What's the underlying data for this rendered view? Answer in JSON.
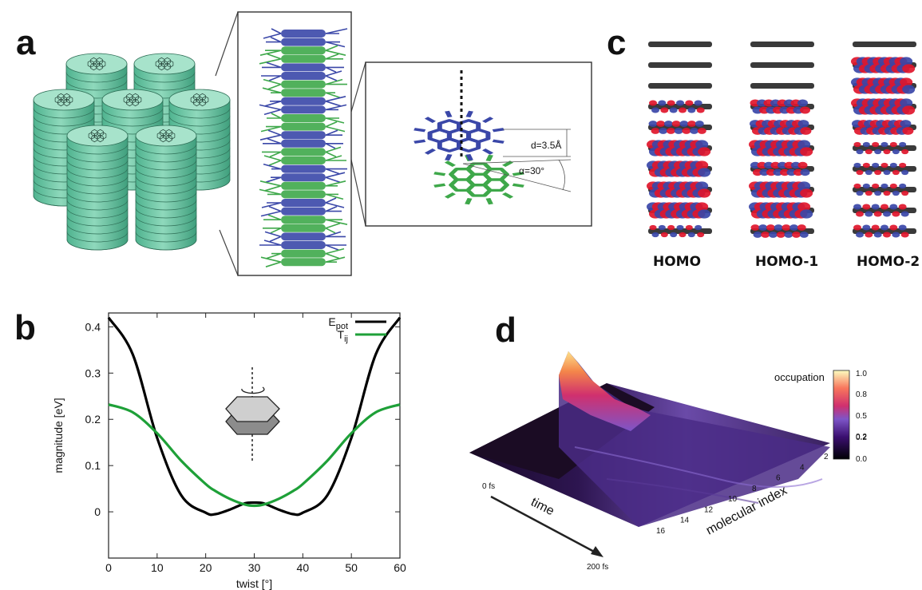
{
  "panels": {
    "a": {
      "letter": "a",
      "distance_label": "d=3.5Å",
      "angle_label": "α=30°"
    },
    "b": {
      "letter": "b"
    },
    "c": {
      "letter": "c",
      "orbitals": [
        "HOMO",
        "HOMO-1",
        "HOMO-2"
      ]
    },
    "d": {
      "letter": "d",
      "time_start": "0 fs",
      "time_end": "200 fs",
      "time_label": "time",
      "index_label": "molecular index",
      "index_ticks": [
        "2",
        "4",
        "6",
        "8",
        "10",
        "12",
        "14",
        "16"
      ],
      "colorbar_title": "occupation",
      "colorbar_ticks": [
        "1.0",
        "0.8",
        "0.5",
        "0.2",
        "0.2",
        "0.0"
      ]
    }
  },
  "colors": {
    "column_green": "#6cc9a6",
    "blue": "#3a47a8",
    "green": "#3ea84a",
    "red": "#e0162b",
    "epot": "#000000",
    "tij": "#1ea038"
  },
  "chart_data": {
    "type": "line",
    "xlabel": "twist [°]",
    "ylabel": "magnitude [eV]",
    "xlim": [
      0,
      60
    ],
    "ylim": [
      -0.1,
      0.43
    ],
    "xticks": [
      "0",
      "10",
      "20",
      "30",
      "40",
      "50",
      "60"
    ],
    "yticks": [
      "0.4",
      "0.3",
      "0.2",
      "0.1",
      "0"
    ],
    "legend_position": "top-right",
    "x": [
      0,
      5,
      10,
      15,
      20,
      22,
      25,
      28,
      30,
      32,
      35,
      38,
      40,
      45,
      50,
      55,
      60
    ],
    "series": [
      {
        "name": "E_pot",
        "legend_main": "E",
        "legend_sub": "pot",
        "values": [
          0.42,
          0.34,
          0.16,
          0.035,
          -0.002,
          -0.005,
          0.005,
          0.018,
          0.02,
          0.018,
          0.005,
          -0.005,
          -0.002,
          0.035,
          0.16,
          0.34,
          0.42
        ]
      },
      {
        "name": "T_ij",
        "legend_main": "T",
        "legend_sub": "ij",
        "values": [
          0.232,
          0.215,
          0.17,
          0.11,
          0.06,
          0.045,
          0.028,
          0.016,
          0.013,
          0.016,
          0.028,
          0.045,
          0.06,
          0.11,
          0.17,
          0.215,
          0.232
        ]
      }
    ]
  }
}
